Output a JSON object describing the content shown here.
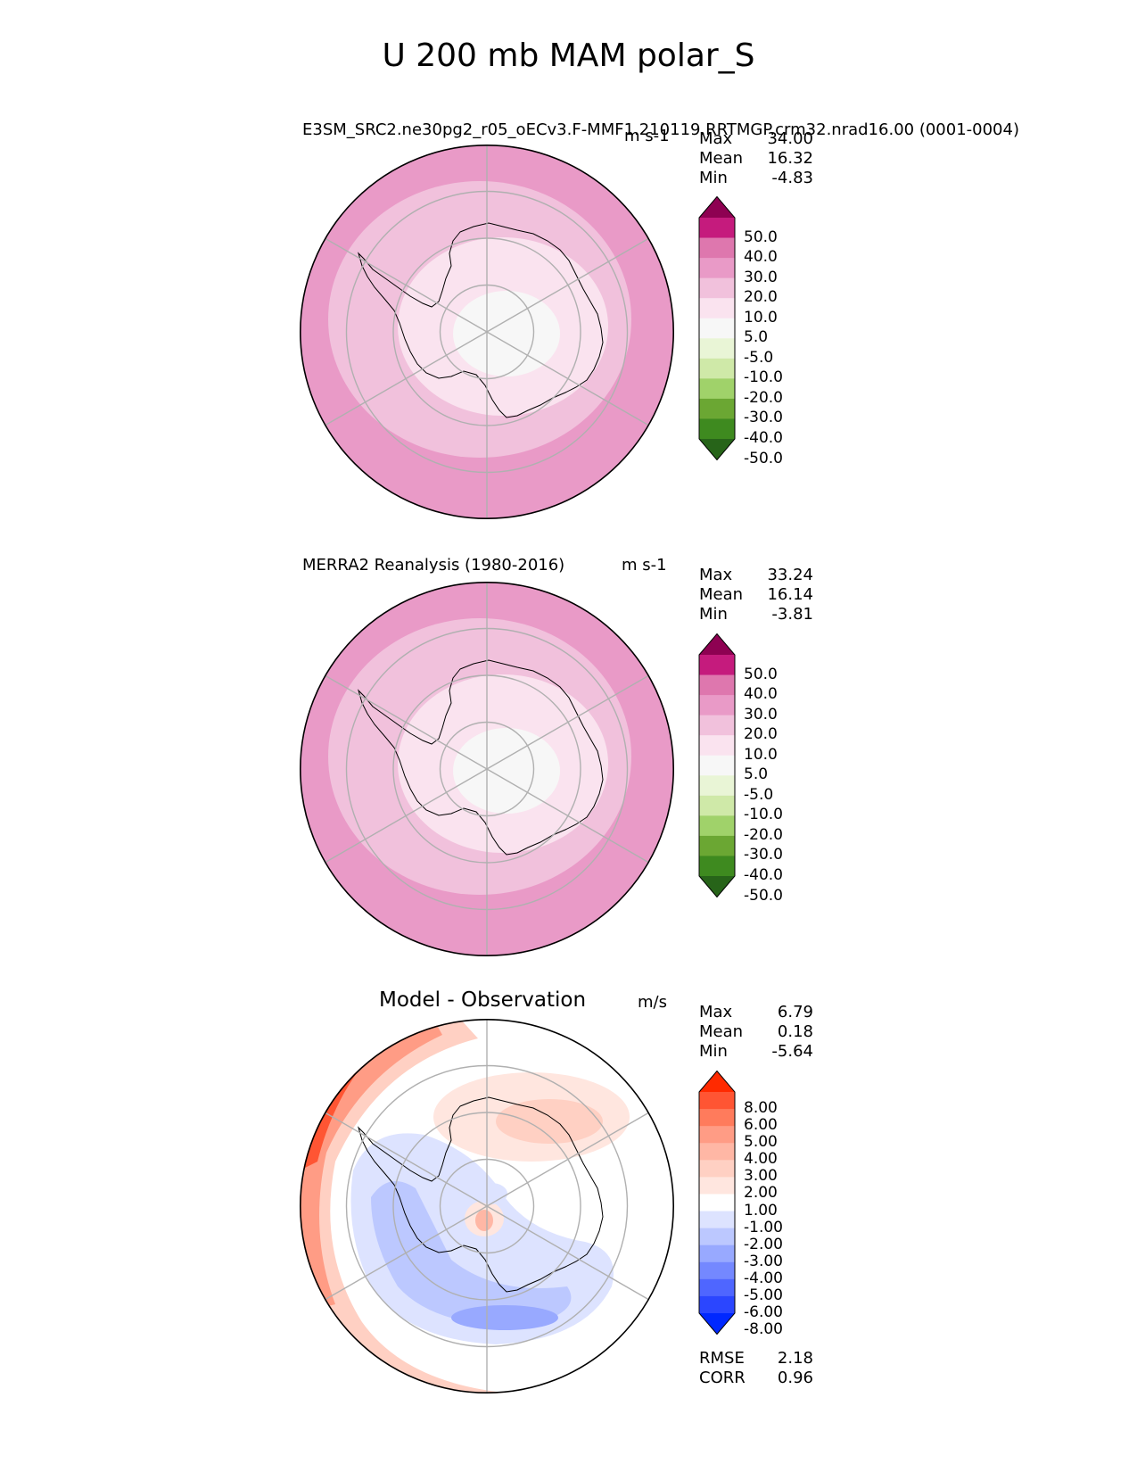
{
  "title": "U 200 mb MAM polar_S",
  "panels": [
    {
      "id": "test",
      "left_title": "E3SM_SRC2.ne30pg2_r05_oECv3.F-MMF1.210119.RRTMGP.crm32.nrad16.00 (0001-0004)",
      "units": "m s-1",
      "stats": [
        {
          "label": "Max",
          "value": "34.00"
        },
        {
          "label": "Mean",
          "value": "16.32"
        },
        {
          "label": "Min",
          "value": "-4.83"
        }
      ],
      "colorbar": {
        "labels": [
          "50.0",
          "40.0",
          "30.0",
          "20.0",
          "10.0",
          "5.0",
          "-5.0",
          "-10.0",
          "-20.0",
          "-30.0",
          "-40.0",
          "-50.0"
        ],
        "colors": [
          "#8e0152",
          "#c51b7d",
          "#de77ae",
          "#e99ac7",
          "#f1c1dc",
          "#fae3ef",
          "#f7f7f7",
          "#e9f5d6",
          "#cfe9a8",
          "#a0d26a",
          "#6ba733",
          "#3e8a1f",
          "#276419"
        ]
      },
      "map_colors": {
        "outer": "#e99ac7",
        "mid": "#f1c1dc",
        "inner": "#fae3ef",
        "center": "#f7f7f7",
        "edge": "#de77ae"
      }
    },
    {
      "id": "reference",
      "left_title": "MERRA2 Reanalysis (1980-2016)",
      "units": "m s-1",
      "stats": [
        {
          "label": "Max",
          "value": "33.24"
        },
        {
          "label": "Mean",
          "value": "16.14"
        },
        {
          "label": "Min",
          "value": "-3.81"
        }
      ],
      "colorbar": {
        "labels": [
          "50.0",
          "40.0",
          "30.0",
          "20.0",
          "10.0",
          "5.0",
          "-5.0",
          "-10.0",
          "-20.0",
          "-30.0",
          "-40.0",
          "-50.0"
        ],
        "colors": [
          "#8e0152",
          "#c51b7d",
          "#de77ae",
          "#e99ac7",
          "#f1c1dc",
          "#fae3ef",
          "#f7f7f7",
          "#e9f5d6",
          "#cfe9a8",
          "#a0d26a",
          "#6ba733",
          "#3e8a1f",
          "#276419"
        ]
      },
      "map_colors": {
        "outer": "#e99ac7",
        "mid": "#f1c1dc",
        "inner": "#fae3ef",
        "center": "#f7f7f7",
        "edge": "#de77ae"
      }
    },
    {
      "id": "difference",
      "center_title": "Model - Observation",
      "units": "m/s",
      "stats": [
        {
          "label": "Max",
          "value": "6.79"
        },
        {
          "label": "Mean",
          "value": "0.18"
        },
        {
          "label": "Min",
          "value": "-5.64"
        }
      ],
      "colorbar": {
        "labels": [
          "8.00",
          "6.00",
          "5.00",
          "4.00",
          "3.00",
          "2.00",
          "1.00",
          "-1.00",
          "-2.00",
          "-3.00",
          "-4.00",
          "-5.00",
          "-6.00",
          "-8.00"
        ],
        "colors": [
          "#ff2a00",
          "#ff5533",
          "#ff7b5c",
          "#ff9c85",
          "#ffb7a5",
          "#ffd0c3",
          "#ffe6df",
          "#ffffff",
          "#dde3ff",
          "#bcc8ff",
          "#98a9ff",
          "#7488ff",
          "#4f66ff",
          "#2b46ff",
          "#0028ff"
        ]
      },
      "metrics": [
        {
          "label": "RMSE",
          "value": "2.18"
        },
        {
          "label": "CORR",
          "value": "0.96"
        }
      ]
    }
  ]
}
